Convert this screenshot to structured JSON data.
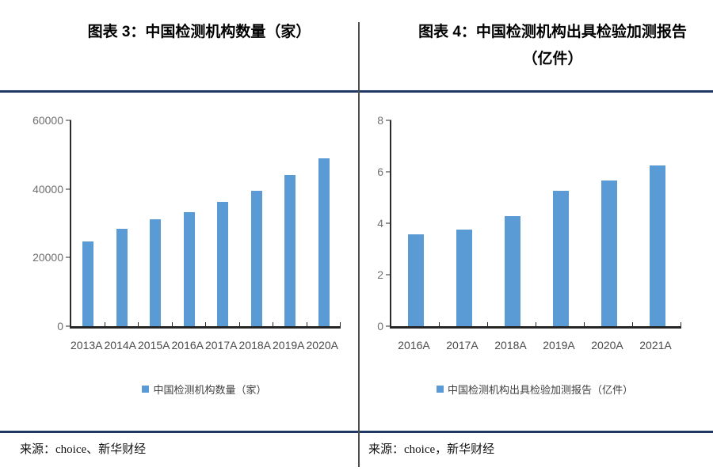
{
  "panels": [
    {
      "title_line1": "图表 3：中国检测机构数量（家）",
      "source": "来源：choice、新华财经"
    },
    {
      "title_line1": "图表 4：中国检测机构出具检验加测报告",
      "title_line2": "（亿件）",
      "source": "来源：choice，新华财经"
    }
  ],
  "chart_data": [
    {
      "type": "bar",
      "title": "图表 3：中国检测机构数量（家）",
      "categories": [
        "2013A",
        "2014A",
        "2015A",
        "2016A",
        "2017A",
        "2018A",
        "2019A",
        "2020A"
      ],
      "values": [
        24800,
        28300,
        31100,
        33200,
        36300,
        39500,
        44000,
        48900
      ],
      "legend": "中国检测机构数量（家）",
      "xlabel": "",
      "ylabel": "",
      "ylim": [
        0,
        60000
      ],
      "yticks": [
        0,
        20000,
        40000,
        60000
      ],
      "grid": false,
      "legend_position": "bottom",
      "bar_color": "#5b9bd5"
    },
    {
      "type": "bar",
      "title": "图表 4：中国检测机构出具检验加测报告（亿件）",
      "categories": [
        "2016A",
        "2017A",
        "2018A",
        "2019A",
        "2020A",
        "2021A"
      ],
      "values": [
        3.56,
        3.76,
        4.28,
        5.27,
        5.67,
        6.25
      ],
      "legend": "中国检测机构出具检验加测报告（亿件）",
      "xlabel": "",
      "ylabel": "",
      "ylim": [
        0,
        8
      ],
      "yticks": [
        0,
        2,
        4,
        6,
        8
      ],
      "grid": false,
      "legend_position": "bottom",
      "bar_color": "#5b9bd5"
    }
  ],
  "colors": {
    "bar": "#5b9bd5",
    "rule": "#1f3864",
    "divider": "#4d4d4d",
    "axis": "#2b2b2b",
    "y_tick_label": "#6e6e6e",
    "x_tick_label": "#4a4a4a"
  }
}
